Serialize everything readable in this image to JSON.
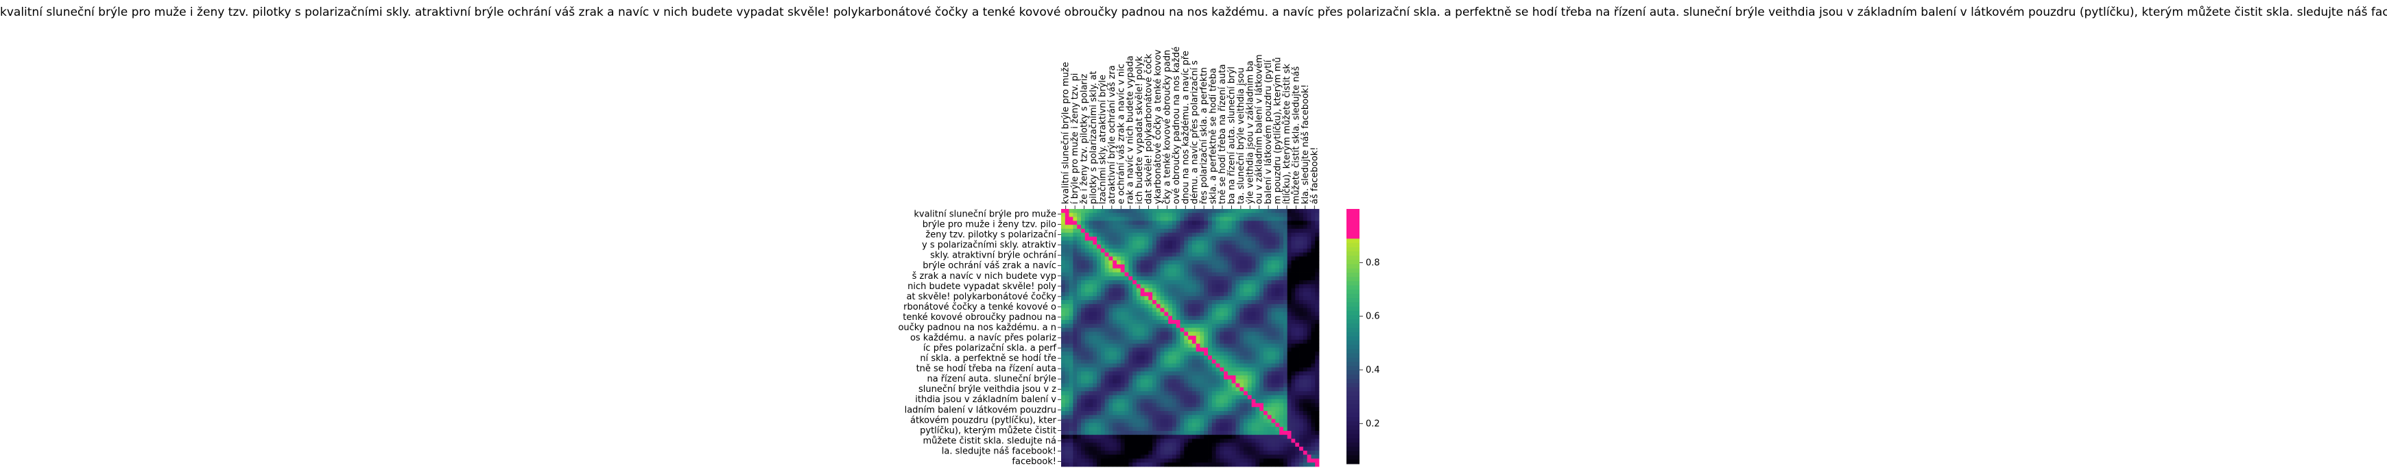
{
  "chart_data": {
    "type": "heatmap",
    "title": "kvalitní sluneční brýle pro muže i ženy tzv. pilotky s polarizačními skly. atraktivní brýle ochrání váš zrak a navíc v nich budete vypadat skvěle! polykarbonátové čočky a tenké kovové obroučky padnou na nos každému. a navíc přes polarizační skla. a perfektně se hodí třeba na řízení auta. sluneční brýle veithdia jsou v základním balení v látkovém pouzdru (pytlíčku), kterým můžete čistit skla. sledujte náš facebook!",
    "row_labels": [
      "kvalitní sluneční brýle pro muže",
      "brýle pro muže i ženy tzv. pilo",
      "ženy tzv. pilotky s polarizační",
      "y s polarizačními skly. atraktiv",
      "skly. atraktivní brýle ochrání",
      "brýle ochrání váš zrak a navíc",
      "š zrak a navíc v nich budete vyp",
      "nich budete vypadat skvěle! poly",
      "at skvěle! polykarbonátové čočky",
      "rbonátové čočky a tenké kovové o",
      "tenké kovové obroučky padnou na",
      "oučky padnou na nos každému. a n",
      "os každému. a navíc přes polariz",
      "íc přes polarizační skla. a perf",
      "ní skla. a perfektně se hodí tře",
      "tně se hodí třeba na řízení auta",
      "na řízení auta. sluneční brýle",
      "sluneční brýle veithdia jsou v z",
      "ithdia jsou v základním balení v",
      "ladním balení v látkovém pouzdru",
      "átkovém pouzdru (pytlíčku), kter",
      "pytlíčku), kterým můžete čistit",
      "můžete čistit skla. sledujte ná",
      "la. sledujte náš facebook!",
      "facebook!"
    ],
    "col_labels": [
      "kvalitní sluneční brýle pro muže",
      "í brýle pro muže i ženy tzv. pi",
      "že i ženy tzv. pilotky s polariz",
      "pilotky s polarizačními skly. at",
      "lzačními skly. atraktivní brýle",
      "atraktivní brýle ochrání váš zra",
      "e ochrání váš zrak a navíc v nic",
      "rak a navíc v nich budete vypada",
      "ich budete vypadat skvěle! polyk",
      "dat skvěle! polykarbonátové čočk",
      "ykarbonátové čočky a tenké kovov",
      "čky a tenké kovové obroučky padn",
      "ové obroučky padnou na nos každé",
      "dnou na nos každému. a navíc pře",
      "dému. a navíc přes polarizační s",
      "řes polarizační skla. a perfektn",
      "skla. a perfektně se hodí třeba",
      "tně se hodí třeba na řízení auta",
      "ba na řízení auta. sluneční brýl",
      "ta. sluneční brýle veithdia jsou",
      "ýle veithdia jsou v základním ba",
      "ou v základním balení v látkovém",
      "balení v látkovém pouzdru (pytlí",
      "m pouzdru (pytlíčku), kterým mů",
      "ítlíčku), kterým můžete čistit sk",
      "můžete čistit skla. sledujte náš",
      "kla. sledujte náš facebook!",
      "áš facebook!"
    ],
    "grid_size": 65,
    "colorbar": {
      "min": 0.05,
      "max": 1.0,
      "ticks": [
        "0.2",
        "0.4",
        "0.6",
        "0.8"
      ],
      "colormap": [
        "#000004",
        "#1b0c41",
        "#2c1e64",
        "#35306e",
        "#2a5a7a",
        "#1f7e82",
        "#25a07c",
        "#44bd6d",
        "#86d54b",
        "#c4e52a",
        "#ff1493"
      ],
      "diagonal_color": "#ff1493"
    }
  }
}
